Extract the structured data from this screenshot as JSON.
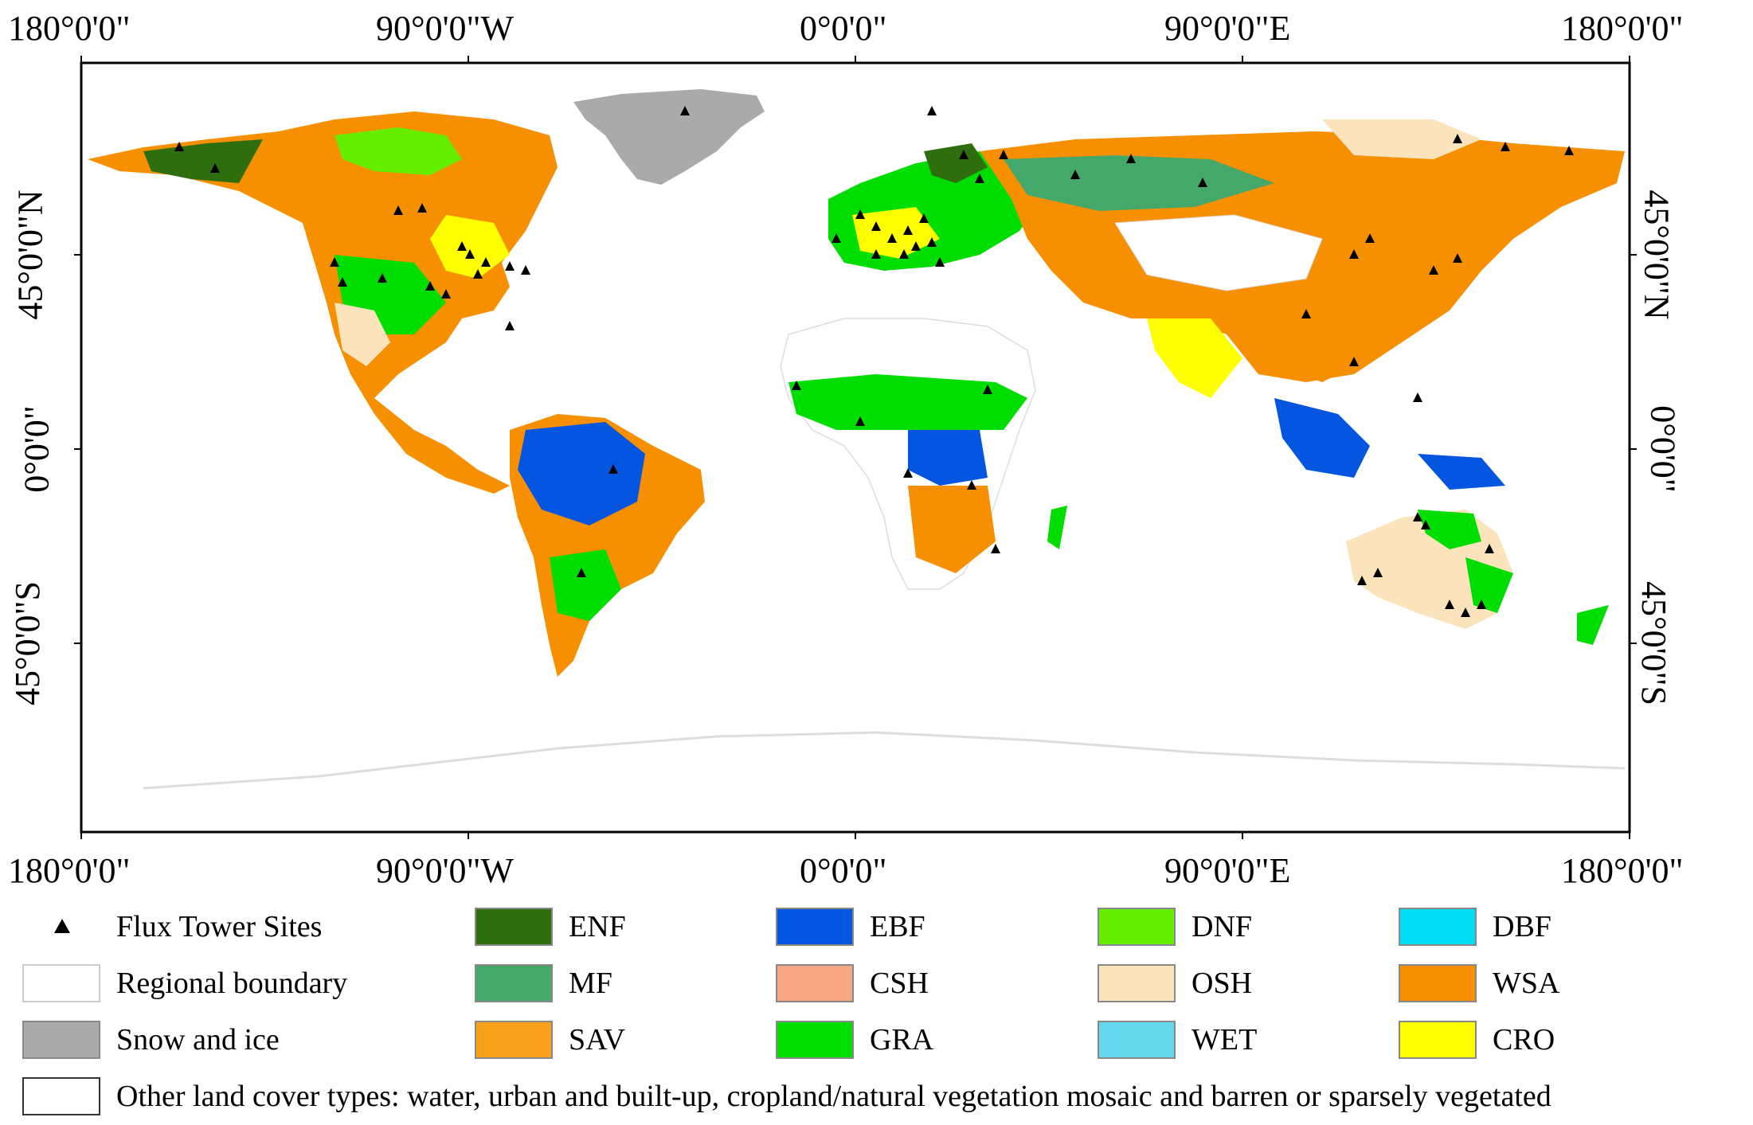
{
  "axes": {
    "top_ticks": [
      "180°0'0\"",
      "90°0'0\"W",
      "0°0'0\"",
      "90°0'0\"E",
      "180°0'0\""
    ],
    "bottom_ticks": [
      "180°0'0\"",
      "90°0'0\"W",
      "0°0'0\"",
      "90°0'0\"E",
      "180°0'0\""
    ],
    "left_ticks": [
      "45°0'0\"N",
      "0°0'0\"",
      "45°0'0\"S"
    ],
    "right_ticks": [
      "45°0'0\"N",
      "0°0'0\"",
      "45°0'0\"S"
    ]
  },
  "legend": {
    "flux_sites": "Flux Tower Sites",
    "regional_boundary": "Regional boundary",
    "snow_ice": "Snow and ice",
    "other_types": "Other land cover types: water, urban and built-up, cropland/natural vegetation mosaic and barren or sparsely vegetated",
    "classes": [
      {
        "label": "ENF",
        "color": "#2f6e0e"
      },
      {
        "label": "EBF",
        "color": "#0455e0"
      },
      {
        "label": "DNF",
        "color": "#66ee00"
      },
      {
        "label": "DBF",
        "color": "#00ddf5"
      },
      {
        "label": "MF",
        "color": "#44a86a"
      },
      {
        "label": "CSH",
        "color": "#f7a882"
      },
      {
        "label": "OSH",
        "color": "#fbe3bb"
      },
      {
        "label": "WSA",
        "color": "#f79000"
      },
      {
        "label": "SAV",
        "color": "#f9a11b"
      },
      {
        "label": "GRA",
        "color": "#00dd00"
      },
      {
        "label": "WET",
        "color": "#66d8ee"
      },
      {
        "label": "CRO",
        "color": "#ffff00"
      }
    ],
    "snow_color": "#aaaaaa"
  }
}
